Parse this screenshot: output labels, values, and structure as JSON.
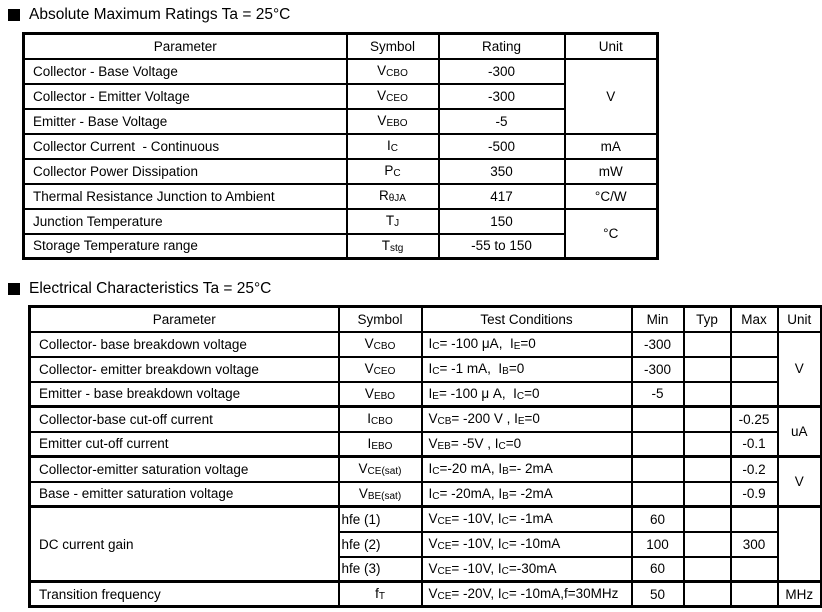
{
  "abs_max": {
    "title": "Absolute Maximum Ratings Ta = 25°C",
    "headers": [
      "Parameter",
      "Symbol",
      "Rating",
      "Unit"
    ],
    "rows": [
      {
        "param": "Collector - Base Voltage",
        "symbol": "V{CBO}",
        "rating": "-300",
        "unit": "V"
      },
      {
        "param": "Collector - Emitter Voltage",
        "symbol": "V{CEO}",
        "rating": "-300"
      },
      {
        "param": "Emitter - Base Voltage",
        "symbol": "V{EBO}",
        "rating": "-5"
      },
      {
        "param": "Collector Current  - Continuous",
        "symbol": "I{C}",
        "rating": "-500",
        "unit": "mA"
      },
      {
        "param": "Collector Power Dissipation",
        "symbol": "P{C}",
        "rating": "350",
        "unit": "mW"
      },
      {
        "param": "Thermal Resistance Junction to Ambient",
        "symbol": "R{θJA}",
        "rating": "417",
        "unit": "°C/W"
      },
      {
        "param": "Junction Temperature",
        "symbol": "T{J}",
        "rating": "150",
        "unit": "°C"
      },
      {
        "param": "Storage Temperature range",
        "symbol": "T{stg}",
        "rating": "-55 to 150"
      }
    ]
  },
  "elec": {
    "title": "Electrical Characteristics Ta = 25°C",
    "headers": [
      "Parameter",
      "Symbol",
      "Test Conditions",
      "Min",
      "Typ",
      "Max",
      "Unit"
    ],
    "rows": [
      {
        "param": "Collector- base breakdown voltage",
        "symbol": "V{CBO}",
        "cond": "I{C}= -100 μA,  I{E}=0",
        "min": "-300",
        "typ": "",
        "max": "",
        "unit": "V"
      },
      {
        "param": "Collector- emitter breakdown voltage",
        "symbol": "V{CEO}",
        "cond": "I{C}= -1 mA,  I{B}=0",
        "min": "-300",
        "typ": "",
        "max": ""
      },
      {
        "param": "Emitter - base breakdown voltage",
        "symbol": "V{EBO}",
        "cond": "I{E}= -100 μ A,  I{C}=0",
        "min": "-5",
        "typ": "",
        "max": ""
      },
      {
        "param": "Collector-base cut-off current",
        "symbol": "I{CBO}",
        "cond": "V{CB}= -200 V , I{E}=0",
        "min": "",
        "typ": "",
        "max": "-0.25",
        "unit": "uA"
      },
      {
        "param": "Emitter cut-off current",
        "symbol": "I{EBO}",
        "cond": "V{EB}= -5V , I{C}=0",
        "min": "",
        "typ": "",
        "max": "-0.1"
      },
      {
        "param": "Collector-emitter saturation voltage",
        "symbol": "V{CE(sat)}",
        "cond": "I{C}=-20 mA, I{B}=- 2mA",
        "min": "",
        "typ": "",
        "max": "-0.2",
        "unit": "V"
      },
      {
        "param": "Base - emitter saturation voltage",
        "symbol": "V{BE(sat)}",
        "cond": "I{C}= -20mA, I{B}= -2mA",
        "min": "",
        "typ": "",
        "max": "-0.9"
      },
      {
        "param": "DC current gain",
        "symbol": "hfe (1)",
        "cond": "V{CE}= -10V, I{C}= -1mA",
        "min": "60",
        "typ": "",
        "max": "",
        "unit": ""
      },
      {
        "symbol": "hfe (2)",
        "cond": "V{CE}= -10V, I{C}= -10mA",
        "min": "100",
        "typ": "",
        "max": "300"
      },
      {
        "symbol": "hfe (3)",
        "cond": "V{CE}= -10V, I{C}=-30mA",
        "min": "60",
        "typ": "",
        "max": ""
      },
      {
        "param": "Transition frequency",
        "symbol": "f{T}",
        "cond": "V{CE}= -20V, I{C}= -10mA,f=30MHz",
        "min": "50",
        "typ": "",
        "max": "",
        "unit": "MHz"
      }
    ]
  }
}
